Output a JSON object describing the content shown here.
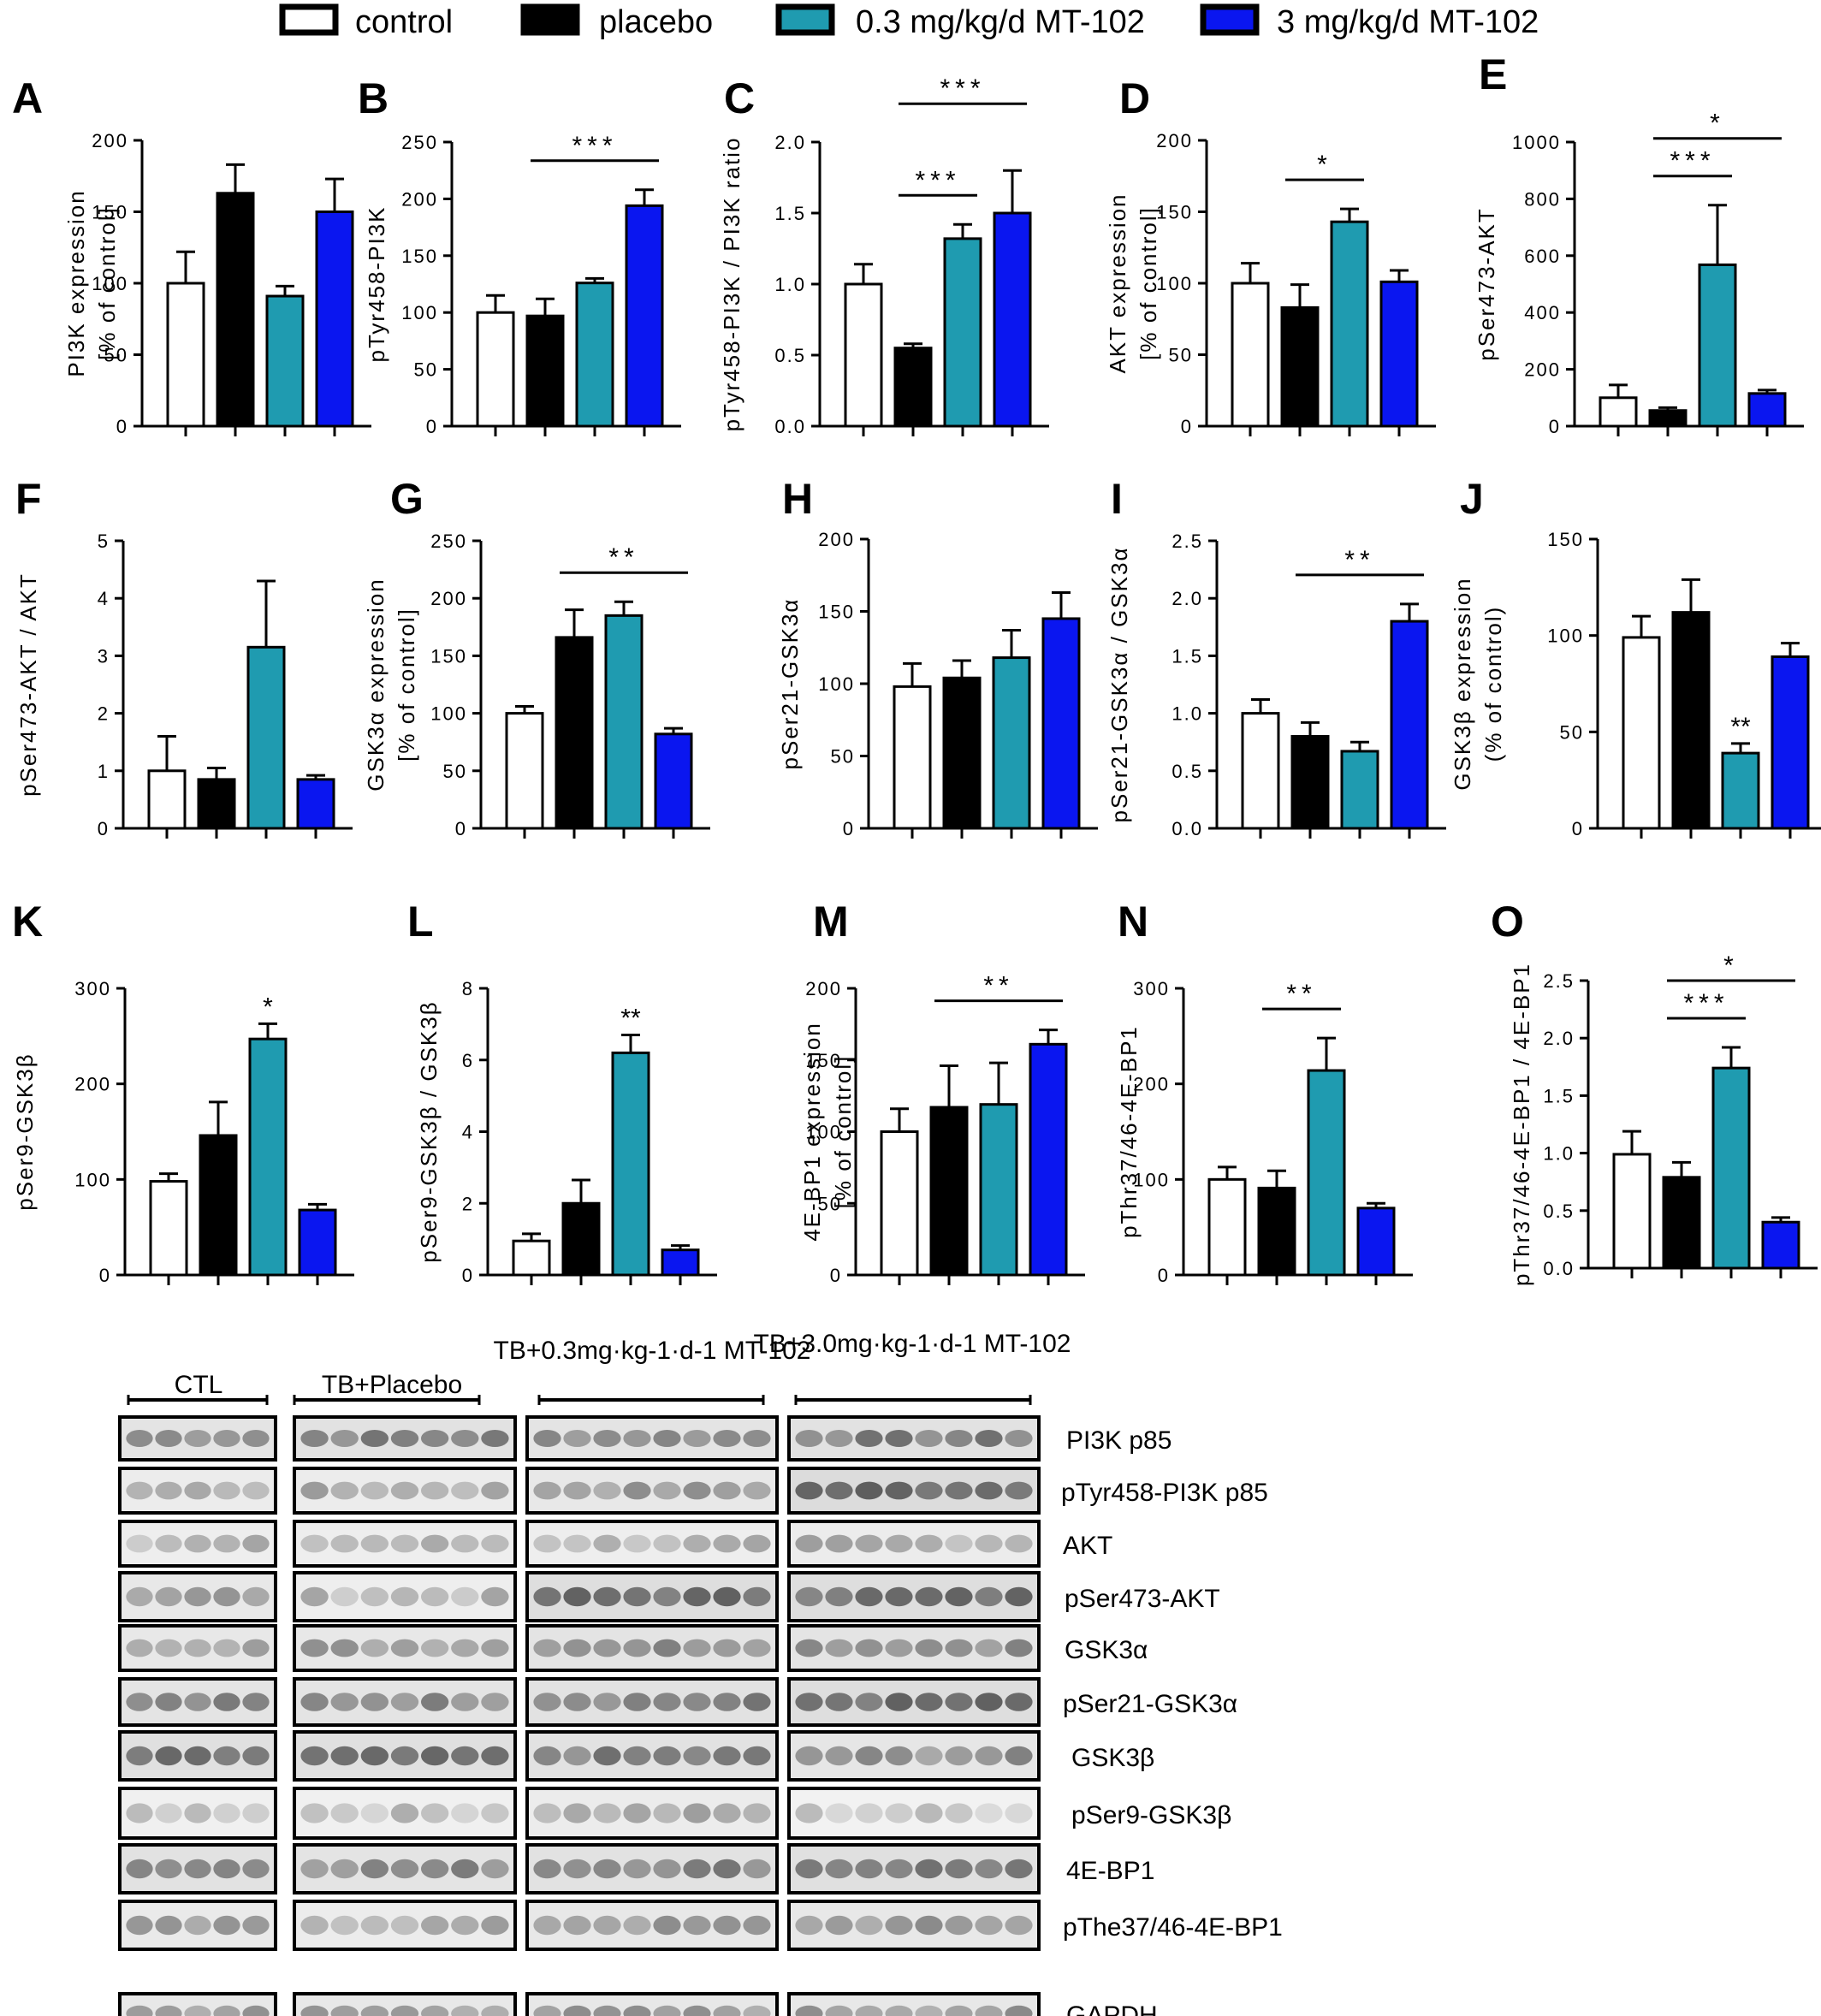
{
  "colors": {
    "control": "#ffffff",
    "placebo": "#000000",
    "low": "#1f9bb0",
    "high": "#0a16f0"
  },
  "legend": [
    {
      "label": "control",
      "color": "#ffffff"
    },
    {
      "label": "placebo",
      "color": "#000000"
    },
    {
      "label": "0.3 mg/kg/d MT-102",
      "color": "#1f9bb0"
    },
    {
      "label": "3 mg/kg/d MT-102",
      "color": "#0a16f0"
    }
  ],
  "chart_data": [
    {
      "panel": "A",
      "type": "bar",
      "ylabel": "PI3K expression",
      "ylabel2": "[% of control]",
      "ylim": [
        0,
        200
      ],
      "ticks": [
        "0",
        "50",
        "100",
        "150",
        "200"
      ],
      "categories": [
        "control",
        "placebo",
        "0.3 mg/kg/d MT-102",
        "3 mg/kg/d MT-102"
      ],
      "values": [
        100,
        163,
        91,
        150
      ],
      "errors": [
        22,
        20,
        7,
        23
      ],
      "sig": []
    },
    {
      "panel": "B",
      "type": "bar",
      "ylabel": "pTyr458-PI3K",
      "ylim": [
        0,
        250
      ],
      "ticks": [
        "0",
        "50",
        "100",
        "150",
        "200",
        "250"
      ],
      "categories": [
        "control",
        "placebo",
        "0.3 mg/kg/d MT-102",
        "3 mg/kg/d MT-102"
      ],
      "values": [
        100,
        97,
        126,
        194
      ],
      "errors": [
        15,
        15,
        4,
        14
      ],
      "sig": [
        {
          "from": 1,
          "to": 3,
          "text": "***",
          "level": 1
        }
      ]
    },
    {
      "panel": "C",
      "type": "bar",
      "ylabel": "pTyr458-PI3K / PI3K ratio",
      "ylim": [
        0,
        2.0
      ],
      "ticks": [
        "0.0",
        "0.5",
        "1.0",
        "1.5",
        "2.0"
      ],
      "categories": [
        "control",
        "placebo",
        "0.3 mg/kg/d MT-102",
        "3 mg/kg/d MT-102"
      ],
      "values": [
        1.0,
        0.55,
        1.32,
        1.5
      ],
      "errors": [
        0.14,
        0.03,
        0.1,
        0.3
      ],
      "sig": [
        {
          "from": 1,
          "to": 2,
          "text": "***",
          "level": 1
        },
        {
          "from": 1,
          "to": 3,
          "text": "***",
          "level": 2
        }
      ]
    },
    {
      "panel": "D",
      "type": "bar",
      "ylabel": "AKT expression",
      "ylabel2": "[% of control]",
      "ylim": [
        0,
        200
      ],
      "ticks": [
        "0",
        "50",
        "100",
        "150",
        "200"
      ],
      "categories": [
        "control",
        "placebo",
        "0.3 mg/kg/d MT-102",
        "3 mg/kg/d MT-102"
      ],
      "values": [
        100,
        83,
        143,
        101
      ],
      "errors": [
        14,
        16,
        9,
        8
      ],
      "sig": [
        {
          "from": 1,
          "to": 2,
          "text": "*",
          "level": 1
        }
      ]
    },
    {
      "panel": "E",
      "type": "bar",
      "ylabel": "pSer473-AKT",
      "ylim": [
        0,
        1000
      ],
      "ticks": [
        "0",
        "200",
        "400",
        "600",
        "800",
        "1000"
      ],
      "categories": [
        "control",
        "placebo",
        "0.3 mg/kg/d MT-102",
        "3 mg/kg/d MT-102"
      ],
      "values": [
        100,
        55,
        568,
        115
      ],
      "errors": [
        45,
        10,
        210,
        12
      ],
      "sig": [
        {
          "from": 1,
          "to": 2,
          "text": "***",
          "level": 1
        },
        {
          "from": 1,
          "to": 3,
          "text": "*",
          "level": 2
        }
      ]
    },
    {
      "panel": "F",
      "type": "bar",
      "ylabel": "pSer473-AKT / AKT",
      "ylim": [
        0,
        5
      ],
      "ticks": [
        "0",
        "1",
        "2",
        "3",
        "4",
        "5"
      ],
      "categories": [
        "control",
        "placebo",
        "0.3 mg/kg/d MT-102",
        "3 mg/kg/d MT-102"
      ],
      "values": [
        1.0,
        0.85,
        3.15,
        0.85
      ],
      "errors": [
        0.6,
        0.2,
        1.15,
        0.07
      ],
      "sig": []
    },
    {
      "panel": "G",
      "type": "bar",
      "ylabel": "GSK3α expression",
      "ylabel2": "[% of control]",
      "ylim": [
        0,
        250
      ],
      "ticks": [
        "0",
        "50",
        "100",
        "150",
        "200",
        "250"
      ],
      "categories": [
        "control",
        "placebo",
        "0.3 mg/kg/d MT-102",
        "3 mg/kg/d MT-102"
      ],
      "values": [
        100,
        166,
        185,
        82
      ],
      "errors": [
        6,
        24,
        12,
        5
      ],
      "sig": [
        {
          "from": 1,
          "to": 3,
          "text": "**",
          "level": 1
        }
      ]
    },
    {
      "panel": "H",
      "type": "bar",
      "ylabel": "pSer21-GSK3α",
      "ylim": [
        0,
        200
      ],
      "ticks": [
        "0",
        "50",
        "100",
        "150",
        "200"
      ],
      "categories": [
        "control",
        "placebo",
        "0.3 mg/kg/d MT-102",
        "3 mg/kg/d MT-102"
      ],
      "values": [
        98,
        104,
        118,
        145
      ],
      "errors": [
        16,
        12,
        19,
        18
      ],
      "sig": []
    },
    {
      "panel": "I",
      "type": "bar",
      "ylabel": "pSer21-GSK3α / GSK3α",
      "ylim": [
        0,
        2.5
      ],
      "ticks": [
        "0.0",
        "0.5",
        "1.0",
        "1.5",
        "2.0",
        "2.5"
      ],
      "categories": [
        "control",
        "placebo",
        "0.3 mg/kg/d MT-102",
        "3 mg/kg/d MT-102"
      ],
      "values": [
        1.0,
        0.8,
        0.67,
        1.8
      ],
      "errors": [
        0.12,
        0.12,
        0.08,
        0.15
      ],
      "sig": [
        {
          "from": 1,
          "to": 3,
          "text": "**",
          "level": 1
        }
      ]
    },
    {
      "panel": "J",
      "type": "bar",
      "ylabel": "GSK3β expression",
      "ylabel2": "(% of control)",
      "ylim": [
        0,
        150
      ],
      "ticks": [
        "0",
        "50",
        "100",
        "150"
      ],
      "categories": [
        "control",
        "placebo",
        "0.3 mg/kg/d MT-102",
        "3 mg/kg/d MT-102"
      ],
      "values": [
        99,
        112,
        39,
        89
      ],
      "errors": [
        11,
        17,
        5,
        7
      ],
      "sig": [],
      "bar_marks": [
        "",
        "",
        "**",
        ""
      ]
    },
    {
      "panel": "K",
      "type": "bar",
      "ylabel": "pSer9-GSK3β",
      "ylim": [
        0,
        300
      ],
      "ticks": [
        "0",
        "100",
        "200",
        "300"
      ],
      "categories": [
        "control",
        "placebo",
        "0.3 mg/kg/d MT-102",
        "3 mg/kg/d MT-102"
      ],
      "values": [
        98,
        146,
        247,
        68
      ],
      "errors": [
        8,
        35,
        16,
        6
      ],
      "sig": [],
      "bar_marks": [
        "",
        "",
        "*",
        ""
      ]
    },
    {
      "panel": "L",
      "type": "bar",
      "ylabel": "pSer9-GSK3β / GSK3β",
      "ylim": [
        0,
        8
      ],
      "ticks": [
        "0",
        "2",
        "4",
        "6",
        "8"
      ],
      "categories": [
        "control",
        "placebo",
        "0.3 mg/kg/d MT-102",
        "3 mg/kg/d MT-102"
      ],
      "values": [
        0.95,
        2.0,
        6.2,
        0.7
      ],
      "errors": [
        0.2,
        0.65,
        0.5,
        0.12
      ],
      "sig": [],
      "bar_marks": [
        "",
        "",
        "**",
        ""
      ]
    },
    {
      "panel": "M",
      "type": "bar",
      "ylabel": "4E-BP1 expression",
      "ylabel2": "[% of control]",
      "ylim": [
        0,
        200
      ],
      "ticks": [
        "0",
        "50",
        "100",
        "150",
        "200"
      ],
      "categories": [
        "control",
        "placebo",
        "0.3 mg/kg/d MT-102",
        "3 mg/kg/d MT-102"
      ],
      "values": [
        100,
        117,
        119,
        161
      ],
      "errors": [
        16,
        29,
        29,
        10
      ],
      "sig": [
        {
          "from": 1,
          "to": 3,
          "text": "**",
          "level": 1
        }
      ]
    },
    {
      "panel": "N",
      "type": "bar",
      "ylabel": "pThr37/46-4E-BP1",
      "ylim": [
        0,
        300
      ],
      "ticks": [
        "0",
        "100",
        "200",
        "300"
      ],
      "categories": [
        "control",
        "placebo",
        "0.3 mg/kg/d MT-102",
        "3 mg/kg/d MT-102"
      ],
      "values": [
        100,
        91,
        214,
        70
      ],
      "errors": [
        13,
        18,
        34,
        5
      ],
      "sig": [
        {
          "from": 1,
          "to": 2,
          "text": "**",
          "level": 1
        }
      ]
    },
    {
      "panel": "O",
      "type": "bar",
      "ylabel": "pThr37/46-4E-BP1 / 4E-BP1",
      "ylim": [
        0,
        2.5
      ],
      "ticks": [
        "0.0",
        "0.5",
        "1.0",
        "1.5",
        "2.0",
        "2.5"
      ],
      "categories": [
        "control",
        "placebo",
        "0.3 mg/kg/d MT-102",
        "3 mg/kg/d MT-102"
      ],
      "values": [
        0.99,
        0.79,
        1.74,
        0.4
      ],
      "errors": [
        0.2,
        0.13,
        0.18,
        0.04
      ],
      "sig": [
        {
          "from": 1,
          "to": 2,
          "text": "***",
          "level": 1
        },
        {
          "from": 1,
          "to": 3,
          "text": "*",
          "level": 2
        }
      ]
    }
  ],
  "blot": {
    "groups": [
      "CTL",
      "TB+Placebo",
      "TB+0.3mg·kg-1·d-1 MT-102",
      "TB+3.0mg·kg-1·d-1 MT-102"
    ],
    "bands": [
      "PI3K p85",
      "pTyr458-PI3K p85",
      "AKT",
      "pSer473-AKT",
      "GSK3α",
      "pSer21-GSK3α",
      "GSK3β",
      "pSer9-GSK3β",
      "4E-BP1",
      "pThe37/46-4E-BP1",
      "GAPDH"
    ],
    "intensity": [
      [
        0.55,
        0.6,
        0.55,
        0.6
      ],
      [
        0.35,
        0.35,
        0.45,
        0.75
      ],
      [
        0.3,
        0.3,
        0.3,
        0.35
      ],
      [
        0.45,
        0.3,
        0.7,
        0.7
      ],
      [
        0.45,
        0.45,
        0.55,
        0.55
      ],
      [
        0.55,
        0.55,
        0.6,
        0.7
      ],
      [
        0.65,
        0.65,
        0.6,
        0.5
      ],
      [
        0.25,
        0.25,
        0.35,
        0.2
      ],
      [
        0.6,
        0.55,
        0.6,
        0.65
      ],
      [
        0.4,
        0.35,
        0.45,
        0.45
      ],
      [
        0.45,
        0.45,
        0.45,
        0.45
      ]
    ]
  }
}
